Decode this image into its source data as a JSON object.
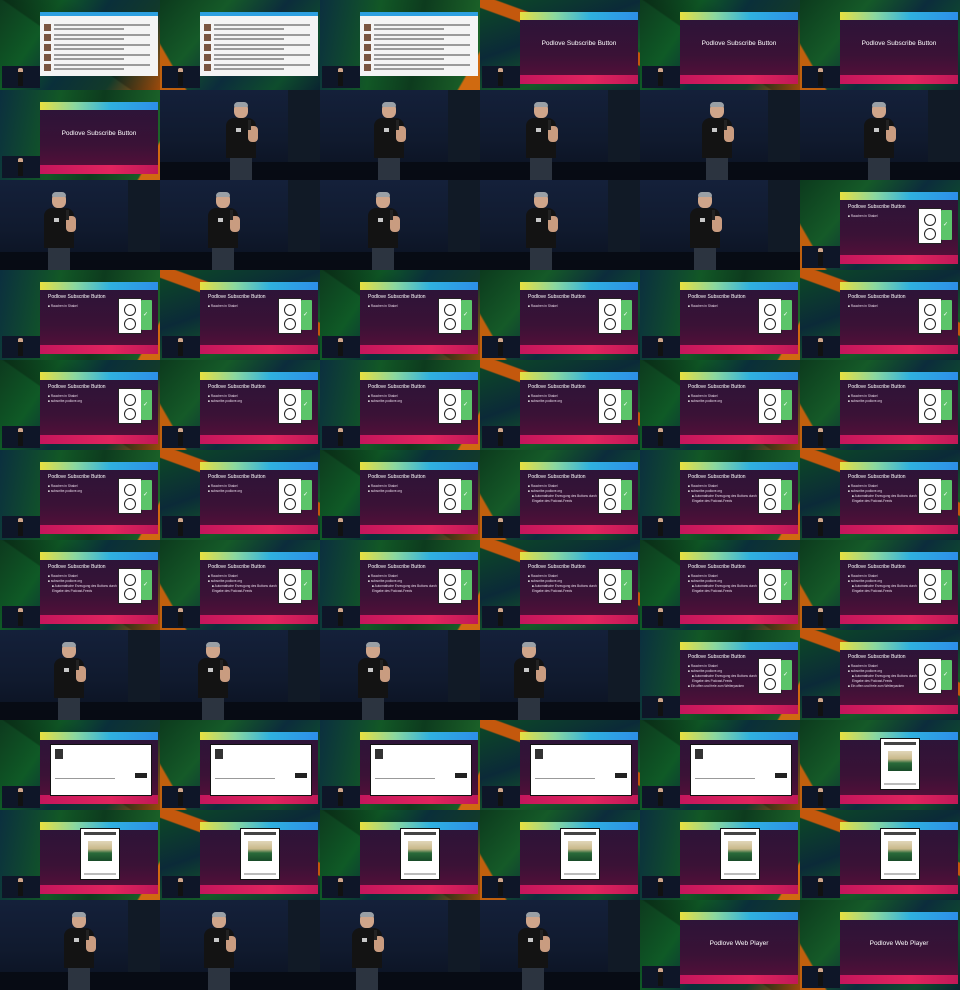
{
  "slide_titles": {
    "subscribe": "Podlove Subscribe Button",
    "player": "Podlove Web Player"
  },
  "bullets": {
    "b1": "Rauchen in Shakel",
    "b2": "subscribe.podlove.org",
    "b3": "Automatische Erzeugung des Buttons durch Eingabe des Podcast-Feeds",
    "b4": "Ein offen und freie zum Weiterpacken"
  },
  "colors": {
    "slide_top_gradient": [
      "#e8e040",
      "#2fb0e0"
    ],
    "slide_bottom": "#e0245e",
    "slide_body": "#3a1236",
    "app_green": "#5cc46a"
  },
  "tiles": [
    {
      "kind": "web"
    },
    {
      "kind": "web"
    },
    {
      "kind": "web"
    },
    {
      "kind": "title",
      "title": "subscribe"
    },
    {
      "kind": "title",
      "title": "subscribe"
    },
    {
      "kind": "title",
      "title": "subscribe"
    },
    {
      "kind": "title",
      "title": "subscribe"
    },
    {
      "kind": "speaker",
      "x": 62
    },
    {
      "kind": "speaker",
      "x": 50
    },
    {
      "kind": "speaker",
      "x": 42
    },
    {
      "kind": "speaker",
      "x": 58
    },
    {
      "kind": "speaker",
      "x": 60
    },
    {
      "kind": "speaker",
      "x": 40
    },
    {
      "kind": "speaker",
      "x": 44
    },
    {
      "kind": "speaker",
      "x": 44
    },
    {
      "kind": "speaker",
      "x": 42
    },
    {
      "kind": "speaker",
      "x": 46
    },
    {
      "kind": "app",
      "n": 1
    },
    {
      "kind": "app",
      "n": 1
    },
    {
      "kind": "app",
      "n": 1
    },
    {
      "kind": "app",
      "n": 1
    },
    {
      "kind": "app",
      "n": 1
    },
    {
      "kind": "app",
      "n": 1
    },
    {
      "kind": "app",
      "n": 1
    },
    {
      "kind": "app",
      "n": 2
    },
    {
      "kind": "app",
      "n": 2
    },
    {
      "kind": "app",
      "n": 2
    },
    {
      "kind": "app",
      "n": 2
    },
    {
      "kind": "app",
      "n": 2
    },
    {
      "kind": "app",
      "n": 2
    },
    {
      "kind": "app",
      "n": 2
    },
    {
      "kind": "app",
      "n": 2
    },
    {
      "kind": "app",
      "n": 2
    },
    {
      "kind": "app",
      "n": 3
    },
    {
      "kind": "app",
      "n": 3
    },
    {
      "kind": "app",
      "n": 3
    },
    {
      "kind": "app",
      "n": 3
    },
    {
      "kind": "app",
      "n": 3
    },
    {
      "kind": "app",
      "n": 3
    },
    {
      "kind": "app",
      "n": 3
    },
    {
      "kind": "app",
      "n": 3
    },
    {
      "kind": "app",
      "n": 3
    },
    {
      "kind": "speaker",
      "x": 50
    },
    {
      "kind": "speaker",
      "x": 34
    },
    {
      "kind": "speaker",
      "x": 34
    },
    {
      "kind": "speaker",
      "x": 30
    },
    {
      "kind": "app",
      "n": 4
    },
    {
      "kind": "app",
      "n": 4
    },
    {
      "kind": "dialog"
    },
    {
      "kind": "dialog"
    },
    {
      "kind": "dialog"
    },
    {
      "kind": "dialog"
    },
    {
      "kind": "dialog"
    },
    {
      "kind": "doc"
    },
    {
      "kind": "doc"
    },
    {
      "kind": "doc"
    },
    {
      "kind": "doc"
    },
    {
      "kind": "doc"
    },
    {
      "kind": "doc"
    },
    {
      "kind": "doc"
    },
    {
      "kind": "speaker",
      "x": 60
    },
    {
      "kind": "speaker",
      "x": 40
    },
    {
      "kind": "speaker",
      "x": 28
    },
    {
      "kind": "speaker",
      "x": 34
    },
    {
      "kind": "title",
      "title": "player"
    },
    {
      "kind": "title",
      "title": "player"
    }
  ]
}
